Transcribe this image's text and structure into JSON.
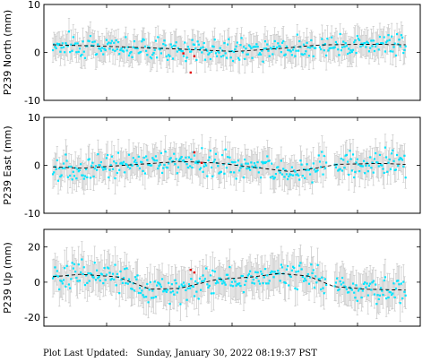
{
  "footer": {
    "label": "Plot Last Updated:",
    "value": "Sunday, January 30, 2022 08:19:37 PST"
  },
  "colors": {
    "points": "#00e5ff",
    "errorbars": "#c8c8c8",
    "outliers": "#e00000",
    "model": "#000000",
    "frame": "#000000"
  },
  "chart_data": [
    {
      "type": "scatter",
      "ylabel": "P239 North (mm)",
      "ylim": [
        -10,
        10
      ],
      "yticks": [
        -10,
        0,
        10
      ],
      "x_range": [
        0,
        1
      ],
      "mean": 1.5,
      "noise": 1.1,
      "errorbar": 2.6,
      "gap": [
        0.72,
        0.73
      ],
      "model": [
        [
          0.0,
          1.6
        ],
        [
          0.18,
          1.2
        ],
        [
          0.35,
          0.7
        ],
        [
          0.5,
          0.2
        ],
        [
          0.62,
          0.8
        ],
        [
          0.72,
          1.5
        ],
        [
          0.76,
          1.6
        ],
        [
          0.88,
          1.7
        ],
        [
          0.96,
          1.6
        ]
      ],
      "outliers": [
        [
          0.38,
          -4.2
        ],
        [
          0.39,
          -0.8
        ],
        [
          0.36,
          -0.2
        ]
      ]
    },
    {
      "type": "scatter",
      "ylabel": "P239 East (mm)",
      "ylim": [
        -10,
        10
      ],
      "yticks": [
        -10,
        0,
        10
      ],
      "x_range": [
        0,
        1
      ],
      "mean": 0.0,
      "noise": 1.3,
      "errorbar": 2.8,
      "gap": [
        0.75,
        0.77
      ],
      "model": [
        [
          0.0,
          -0.3
        ],
        [
          0.08,
          -0.6
        ],
        [
          0.2,
          0.0
        ],
        [
          0.35,
          0.8
        ],
        [
          0.45,
          0.5
        ],
        [
          0.55,
          -0.4
        ],
        [
          0.65,
          -1.3
        ],
        [
          0.72,
          -0.6
        ],
        [
          0.78,
          0.2
        ],
        [
          0.9,
          0.4
        ],
        [
          0.96,
          0.2
        ]
      ],
      "outliers": [
        [
          0.39,
          2.7
        ],
        [
          0.41,
          0.5
        ]
      ]
    },
    {
      "type": "scatter",
      "ylabel": "P239 Up (mm)",
      "ylim": [
        -25,
        30
      ],
      "yticks": [
        -20,
        0,
        20
      ],
      "x_range": [
        0,
        1
      ],
      "mean": 0.0,
      "noise": 3.5,
      "errorbar": 9.0,
      "gap": [
        0.75,
        0.77
      ],
      "model": [
        [
          0.0,
          3.0
        ],
        [
          0.08,
          4.5
        ],
        [
          0.18,
          3.0
        ],
        [
          0.27,
          -4.0
        ],
        [
          0.35,
          -3.5
        ],
        [
          0.45,
          1.5
        ],
        [
          0.55,
          3.0
        ],
        [
          0.62,
          5.0
        ],
        [
          0.7,
          3.5
        ],
        [
          0.77,
          -2.5
        ],
        [
          0.86,
          -4.0
        ],
        [
          0.96,
          -4.5
        ]
      ],
      "outliers": [
        [
          0.38,
          7.0
        ],
        [
          0.39,
          5.5
        ]
      ]
    }
  ]
}
